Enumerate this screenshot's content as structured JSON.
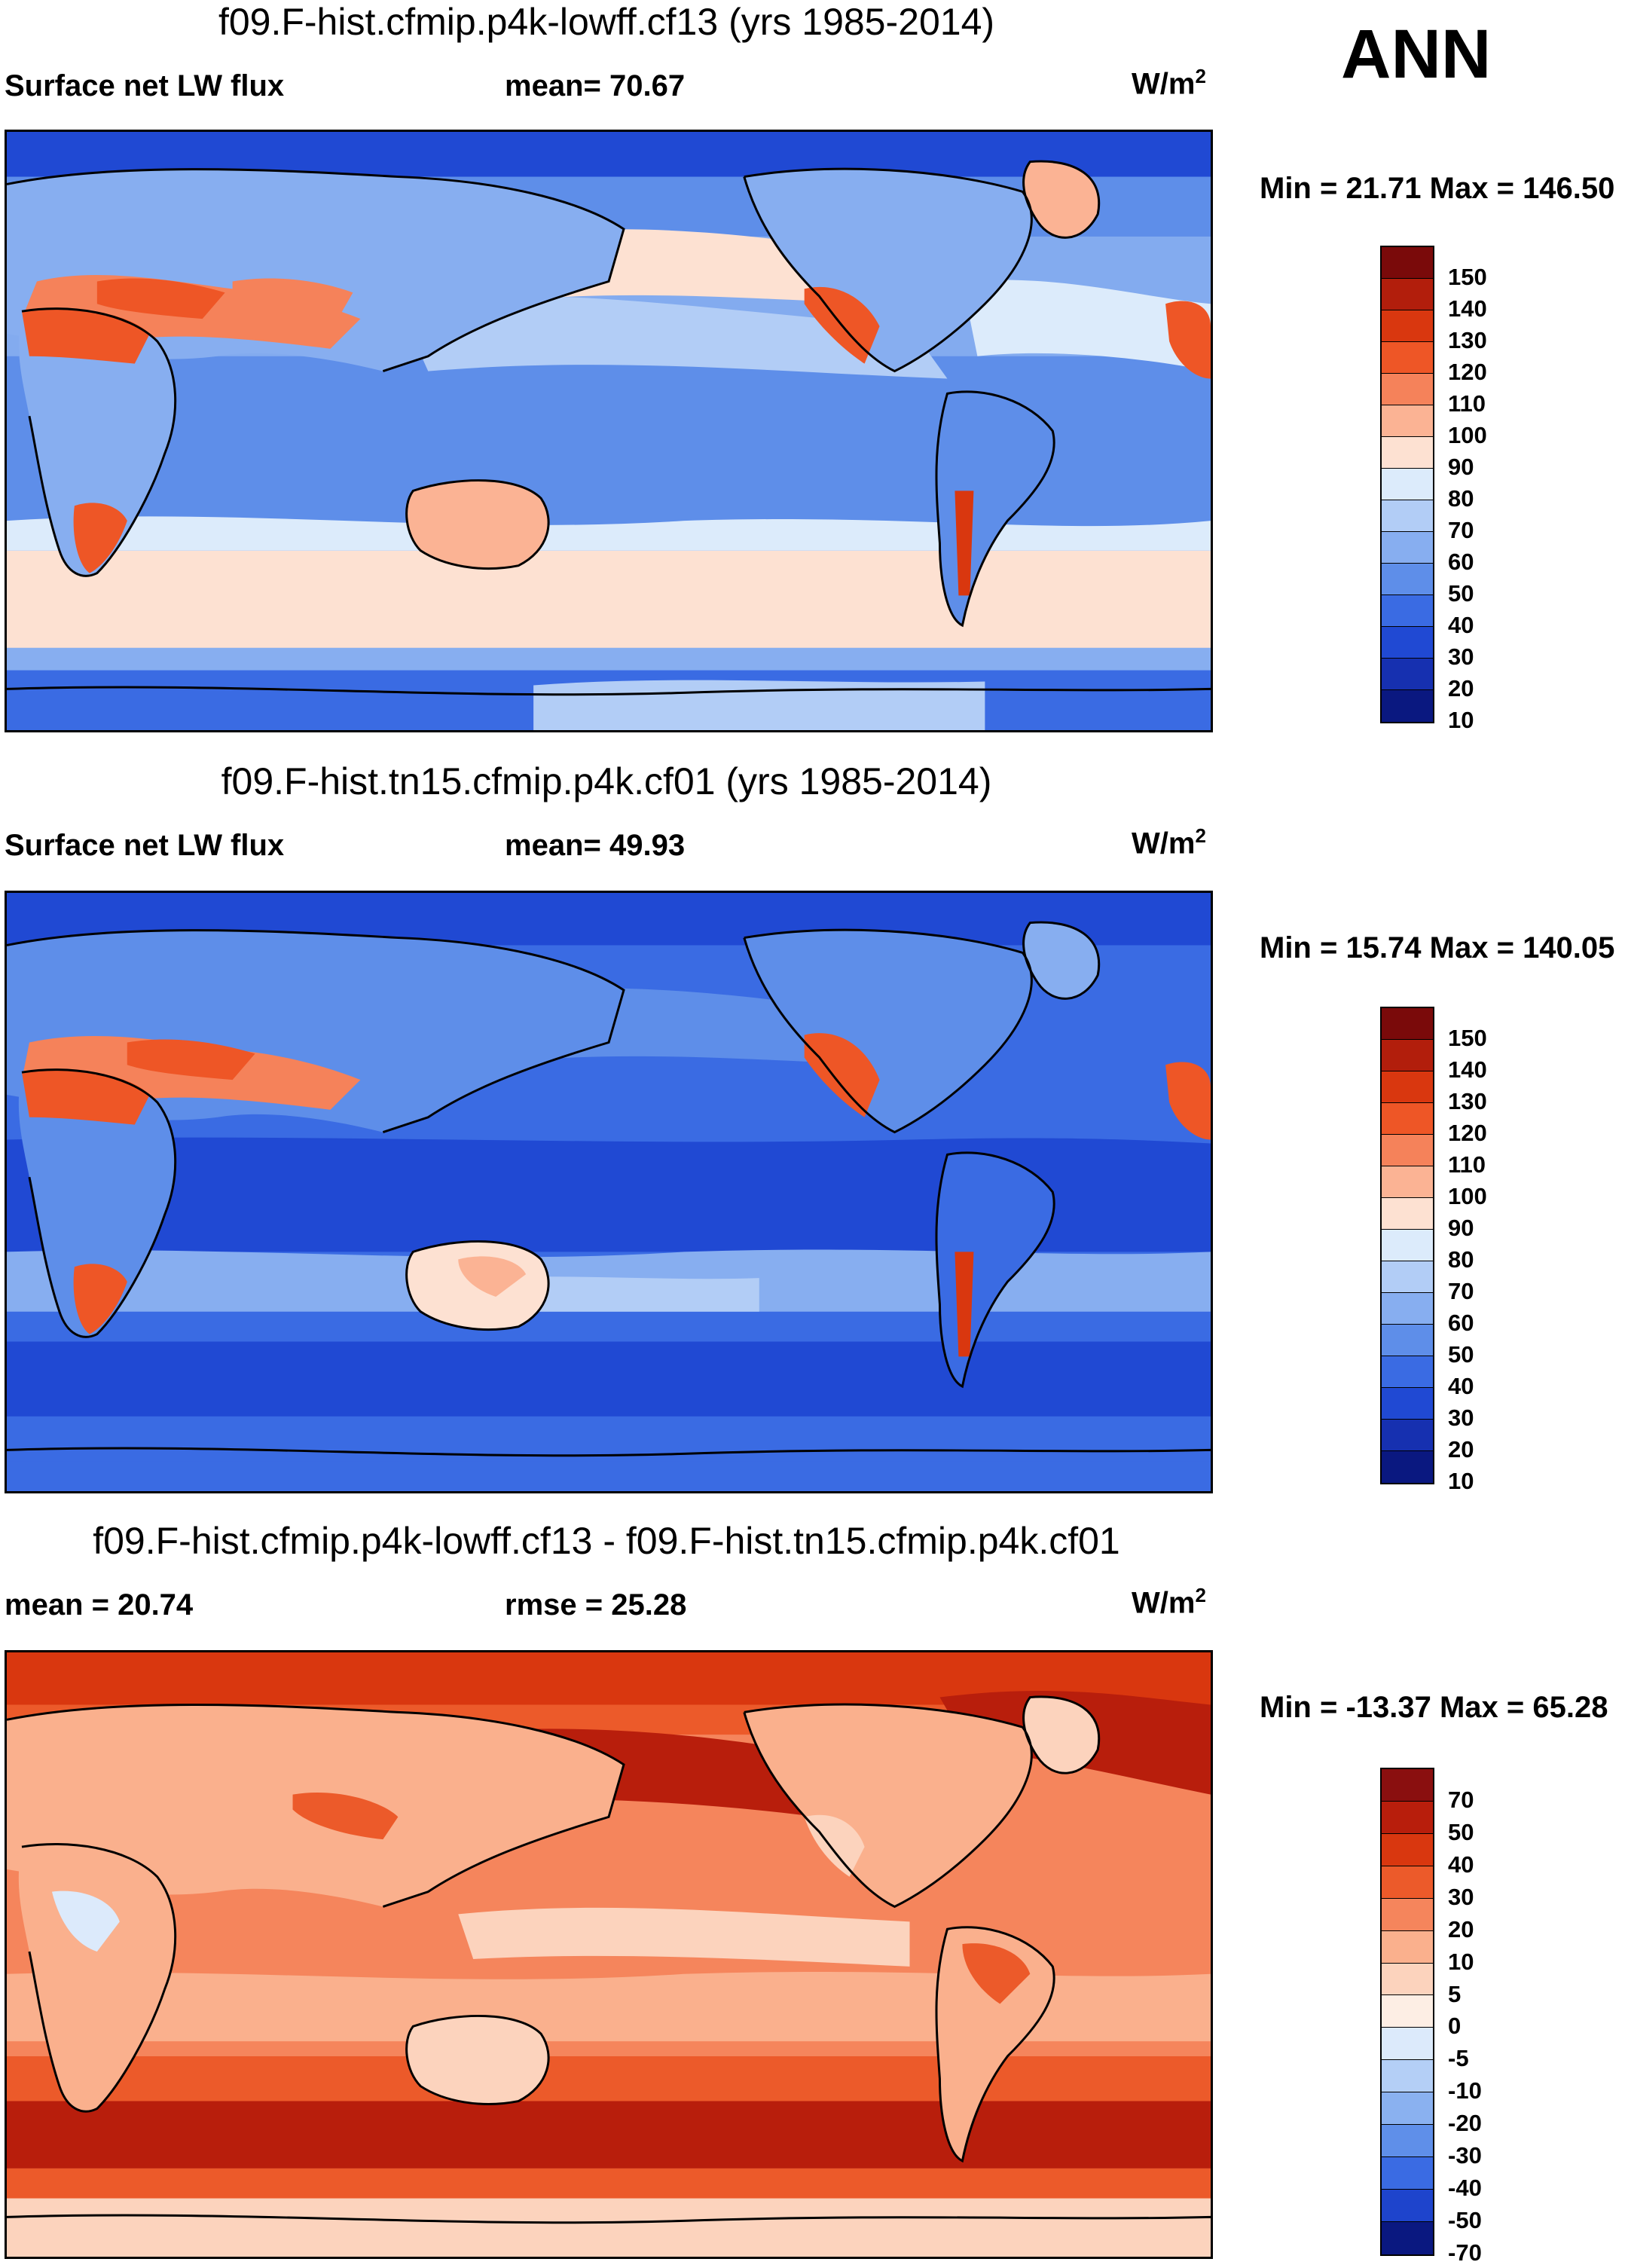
{
  "corner_label": "ANN",
  "panels": [
    {
      "title": "f09.F-hist.cfmip.p4k-lowff.cf13 (yrs 1985-2014)",
      "left_label": "Surface net LW flux",
      "mid_label": "mean=  70.67",
      "units": "W/m",
      "units_sup": "2",
      "minmax": "Min =  21.71 Max = 146.50",
      "levels": [
        "150",
        "140",
        "130",
        "120",
        "110",
        "100",
        "90",
        "80",
        "70",
        "60",
        "50",
        "40",
        "30",
        "20",
        "10"
      ],
      "colors": [
        "#7a0a0a",
        "#b21e0c",
        "#d9370f",
        "#ee5626",
        "#f5825a",
        "#fbb394",
        "#fde1d2",
        "#dcebfb",
        "#b2cdf6",
        "#87aef0",
        "#5e8ee9",
        "#3a6be3",
        "#2049d3",
        "#1630b0",
        "#0a1880"
      ],
      "map_theme": "lw1"
    },
    {
      "title": "f09.F-hist.tn15.cfmip.p4k.cf01 (yrs 1985-2014)",
      "left_label": "Surface net LW flux",
      "mid_label": "mean=  49.93",
      "units": "W/m",
      "units_sup": "2",
      "minmax": "Min =  15.74 Max = 140.05",
      "levels": [
        "150",
        "140",
        "130",
        "120",
        "110",
        "100",
        "90",
        "80",
        "70",
        "60",
        "50",
        "40",
        "30",
        "20",
        "10"
      ],
      "colors": [
        "#7a0a0a",
        "#b21e0c",
        "#d9370f",
        "#ee5626",
        "#f5825a",
        "#fbb394",
        "#fde1d2",
        "#dcebfb",
        "#b2cdf6",
        "#87aef0",
        "#5e8ee9",
        "#3a6be3",
        "#2049d3",
        "#1630b0",
        "#0a1880"
      ],
      "map_theme": "lw2"
    },
    {
      "title": "f09.F-hist.cfmip.p4k-lowff.cf13 - f09.F-hist.tn15.cfmip.p4k.cf01",
      "left_label": "mean =  20.74",
      "mid_label": "rmse =  25.28",
      "units": "W/m",
      "units_sup": "2",
      "minmax": "Min = -13.37 Max =  65.28",
      "levels": [
        "70",
        "50",
        "40",
        "30",
        "20",
        "10",
        "5",
        "0",
        "-5",
        "-10",
        "-20",
        "-30",
        "-40",
        "-50",
        "-70"
      ],
      "colors": [
        "#8a0f0f",
        "#b81e0c",
        "#d9370f",
        "#ec5a2a",
        "#f5855c",
        "#fab08d",
        "#fcd3bd",
        "#fdeee4",
        "#dceafb",
        "#b4cff6",
        "#8ab1f0",
        "#5f8fe9",
        "#3a6be3",
        "#1e44cc",
        "#0a1880"
      ],
      "map_theme": "diff"
    }
  ]
}
